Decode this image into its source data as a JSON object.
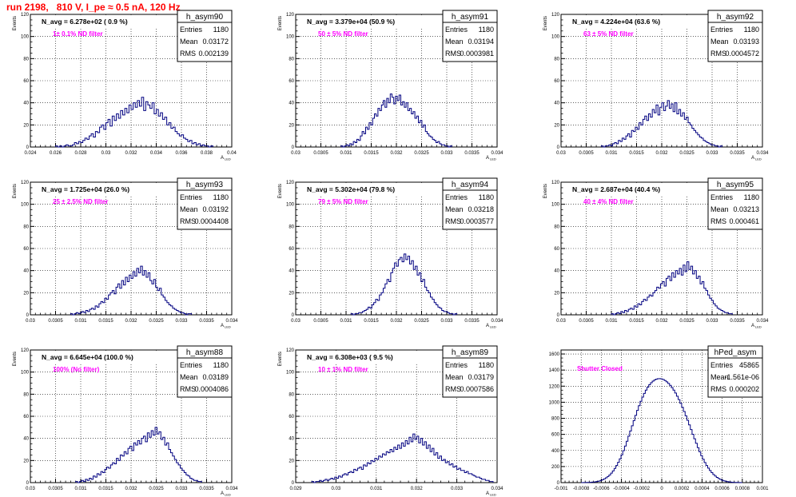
{
  "header": {
    "title": "run 2198,   810 V, I_pe ≈ 0.5 nA, 120 Hz"
  },
  "colors": {
    "title": "#ff0000",
    "label": "#ff00ff",
    "histogram": "#000080",
    "grid": "#000000"
  },
  "chart_data": [
    {
      "type": "histogram",
      "name": "h_asym90",
      "navg": "N_avg = 6.278e+02 ( 0.9 %)",
      "filter": "1± 0.1% ND filter",
      "stats": {
        "entries": "1180",
        "mean": "0.03172",
        "rms": "0.002139"
      },
      "ylabel": "Events",
      "xlabel": "A_LED",
      "xlim": [
        0.024,
        0.04
      ],
      "ylim": [
        0,
        120
      ],
      "xticks": [
        "0.024",
        "0.026",
        "0.028",
        "0.03",
        "0.032",
        "0.034",
        "0.036",
        "0.038",
        "0.04"
      ],
      "yticks": [
        "0",
        "20",
        "40",
        "60",
        "80",
        "100",
        "120"
      ],
      "bin_edges": [
        0.026,
        0.0385
      ],
      "counts": [
        1,
        0,
        1,
        0,
        1,
        2,
        1,
        1,
        2,
        4,
        3,
        5,
        4,
        6,
        8,
        7,
        10,
        12,
        9,
        14,
        13,
        18,
        20,
        16,
        22,
        25,
        19,
        28,
        24,
        30,
        26,
        33,
        29,
        35,
        31,
        38,
        34,
        40,
        36,
        42,
        37,
        45,
        33,
        41,
        38,
        35,
        40,
        30,
        34,
        28,
        31,
        25,
        27,
        20,
        22,
        17,
        18,
        14,
        12,
        10,
        11,
        8,
        7,
        5,
        6,
        3,
        4,
        2,
        3,
        1,
        2,
        1,
        1,
        0,
        1
      ]
    },
    {
      "type": "histogram",
      "name": "h_asym91",
      "navg": "N_avg = 3.379e+04 (50.9 %)",
      "filter": "50 ± 5% ND filter",
      "stats": {
        "entries": "1180",
        "mean": "0.03194",
        "rms": "0.0003981"
      },
      "ylabel": "Events",
      "xlabel": "A_LED",
      "xlim": [
        0.03,
        0.034
      ],
      "ylim": [
        0,
        120
      ],
      "xticks": [
        "0.03",
        "0.0305",
        "0.031",
        "0.0315",
        "0.032",
        "0.0325",
        "0.033",
        "0.0335",
        "0.034"
      ],
      "yticks": [
        "0",
        "20",
        "40",
        "60",
        "80",
        "100",
        "120"
      ],
      "bin_edges": [
        0.0309,
        0.0331
      ],
      "counts": [
        1,
        0,
        1,
        2,
        1,
        3,
        2,
        5,
        4,
        7,
        6,
        10,
        14,
        12,
        18,
        16,
        22,
        20,
        26,
        30,
        28,
        35,
        33,
        38,
        42,
        36,
        44,
        40,
        48,
        45,
        39,
        46,
        42,
        47,
        38,
        41,
        36,
        40,
        33,
        35,
        30,
        32,
        26,
        28,
        22,
        24,
        18,
        20,
        14,
        12,
        10,
        9,
        7,
        6,
        4,
        5,
        3,
        2,
        2,
        1,
        1,
        0,
        1
      ]
    },
    {
      "type": "histogram",
      "name": "h_asym92",
      "navg": "N_avg = 4.224e+04 (63.6 %)",
      "filter": "63 ± 5% ND filter",
      "stats": {
        "entries": "1180",
        "mean": "0.03193",
        "rms": "0.0004572"
      },
      "ylabel": "Events",
      "xlabel": "A_LED",
      "xlim": [
        0.03,
        0.034
      ],
      "ylim": [
        0,
        120
      ],
      "xticks": [
        "0.03",
        "0.0305",
        "0.031",
        "0.0315",
        "0.032",
        "0.0325",
        "0.033",
        "0.0335",
        "0.034"
      ],
      "yticks": [
        "0",
        "20",
        "40",
        "60",
        "80",
        "100",
        "120"
      ],
      "bin_edges": [
        0.0308,
        0.0332
      ],
      "counts": [
        1,
        0,
        1,
        1,
        2,
        1,
        3,
        4,
        3,
        6,
        5,
        8,
        7,
        10,
        12,
        9,
        15,
        14,
        18,
        16,
        22,
        20,
        25,
        28,
        24,
        30,
        27,
        34,
        31,
        38,
        29,
        36,
        40,
        33,
        37,
        42,
        35,
        39,
        32,
        40,
        30,
        34,
        28,
        31,
        25,
        27,
        22,
        20,
        17,
        15,
        13,
        11,
        9,
        8,
        6,
        5,
        4,
        3,
        2,
        2,
        1,
        1,
        0,
        1
      ]
    },
    {
      "type": "histogram",
      "name": "h_asym93",
      "navg": "N_avg = 1.725e+04 (26.0 %)",
      "filter": "25 ± 2.5% ND filter",
      "stats": {
        "entries": "1180",
        "mean": "0.03192",
        "rms": "0.0004408"
      },
      "ylabel": "Events",
      "xlabel": "A_LED",
      "xlim": [
        0.03,
        0.034
      ],
      "ylim": [
        0,
        120
      ],
      "xticks": [
        "0.03",
        "0.0305",
        "0.031",
        "0.0315",
        "0.032",
        "0.0325",
        "0.033",
        "0.0335",
        "0.034"
      ],
      "yticks": [
        "0",
        "20",
        "40",
        "60",
        "80",
        "100",
        "120"
      ],
      "bin_edges": [
        0.0308,
        0.0332
      ],
      "counts": [
        1,
        0,
        1,
        2,
        1,
        2,
        3,
        2,
        4,
        3,
        5,
        6,
        5,
        8,
        7,
        10,
        12,
        11,
        15,
        14,
        18,
        20,
        22,
        19,
        25,
        28,
        24,
        31,
        27,
        34,
        30,
        36,
        33,
        39,
        35,
        42,
        38,
        44,
        36,
        40,
        34,
        38,
        31,
        28,
        32,
        25,
        22,
        24,
        18,
        16,
        13,
        11,
        9,
        8,
        6,
        5,
        4,
        3,
        2,
        2,
        1,
        0,
        1,
        1
      ]
    },
    {
      "type": "histogram",
      "name": "h_asym94",
      "navg": "N_avg = 5.302e+04 (79.8 %)",
      "filter": "79 ± 5% ND filter",
      "stats": {
        "entries": "1180",
        "mean": "0.03218",
        "rms": "0.0003577"
      },
      "ylabel": "Events",
      "xlabel": "A_LED",
      "xlim": [
        0.03,
        0.034
      ],
      "ylim": [
        0,
        120
      ],
      "xticks": [
        "0.03",
        "0.0305",
        "0.031",
        "0.0315",
        "0.032",
        "0.0325",
        "0.033",
        "0.0335",
        "0.034"
      ],
      "yticks": [
        "0",
        "20",
        "40",
        "60",
        "80",
        "100",
        "120"
      ],
      "bin_edges": [
        0.0311,
        0.0332
      ],
      "counts": [
        1,
        0,
        1,
        1,
        2,
        2,
        3,
        4,
        5,
        7,
        6,
        9,
        11,
        14,
        13,
        18,
        20,
        24,
        28,
        32,
        30,
        38,
        42,
        47,
        44,
        50,
        52,
        48,
        55,
        50,
        53,
        46,
        49,
        41,
        44,
        36,
        38,
        30,
        32,
        25,
        22,
        20,
        16,
        14,
        11,
        9,
        7,
        6,
        4,
        3,
        3,
        2,
        1,
        1,
        0,
        1
      ]
    },
    {
      "type": "histogram",
      "name": "h_asym95",
      "navg": "N_avg = 2.687e+04 (40.4 %)",
      "filter": "40 ± 4% ND filter",
      "stats": {
        "entries": "1180",
        "mean": "0.03213",
        "rms": "0.000461"
      },
      "ylabel": "Events",
      "xlabel": "A_LED",
      "xlim": [
        0.03,
        0.034
      ],
      "ylim": [
        0,
        120
      ],
      "xticks": [
        "0.03",
        "0.0305",
        "0.031",
        "0.0315",
        "0.032",
        "0.0325",
        "0.033",
        "0.0335",
        "0.034"
      ],
      "yticks": [
        "0",
        "20",
        "40",
        "60",
        "80",
        "100",
        "120"
      ],
      "bin_edges": [
        0.031,
        0.0334
      ],
      "counts": [
        1,
        0,
        1,
        2,
        1,
        3,
        2,
        4,
        3,
        5,
        6,
        5,
        8,
        7,
        10,
        9,
        12,
        14,
        13,
        16,
        18,
        17,
        20,
        22,
        25,
        24,
        28,
        30,
        26,
        33,
        35,
        31,
        38,
        34,
        40,
        37,
        42,
        36,
        45,
        39,
        48,
        41,
        44,
        37,
        40,
        33,
        35,
        28,
        30,
        24,
        22,
        18,
        15,
        13,
        10,
        8,
        6,
        5,
        4,
        3,
        2,
        2,
        1,
        1
      ]
    },
    {
      "type": "histogram",
      "name": "h_asym88",
      "navg": "N_avg = 6.645e+04 (100.0 %)",
      "filter": "100% (No filter)",
      "stats": {
        "entries": "1180",
        "mean": "0.03189",
        "rms": "0.0004086"
      },
      "ylabel": "Events",
      "xlabel": "A_LED",
      "xlim": [
        0.03,
        0.034
      ],
      "ylim": [
        0,
        120
      ],
      "xticks": [
        "0.03",
        "0.0305",
        "0.031",
        "0.0315",
        "0.032",
        "0.0325",
        "0.033",
        "0.0335",
        "0.034"
      ],
      "yticks": [
        "0",
        "20",
        "40",
        "60",
        "80",
        "100",
        "120"
      ],
      "bin_edges": [
        0.0309,
        0.0334
      ],
      "counts": [
        1,
        0,
        1,
        2,
        1,
        3,
        2,
        4,
        3,
        6,
        5,
        8,
        7,
        10,
        9,
        12,
        14,
        13,
        16,
        18,
        17,
        22,
        20,
        25,
        24,
        28,
        26,
        31,
        33,
        29,
        36,
        34,
        38,
        35,
        40,
        42,
        37,
        45,
        41,
        47,
        43,
        50,
        44,
        46,
        39,
        41,
        34,
        36,
        30,
        27,
        24,
        21,
        18,
        16,
        13,
        11,
        9,
        7,
        6,
        4,
        3,
        2,
        2,
        1,
        1
      ]
    },
    {
      "type": "histogram",
      "name": "h_asym89",
      "navg": "N_avg = 6.308e+03 ( 9.5 %)",
      "filter": "10 ± 1% ND filter",
      "stats": {
        "entries": "1180",
        "mean": "0.03179",
        "rms": "0.0007586"
      },
      "ylabel": "Events",
      "xlabel": "A_LED",
      "xlim": [
        0.029,
        0.034
      ],
      "ylim": [
        0,
        120
      ],
      "xticks": [
        "0.029",
        "0.03",
        "0.031",
        "0.032",
        "0.033",
        "0.034"
      ],
      "yticks": [
        "0",
        "20",
        "40",
        "60",
        "80",
        "100",
        "120"
      ],
      "bin_edges": [
        0.0294,
        0.0339
      ],
      "counts": [
        1,
        0,
        1,
        1,
        2,
        1,
        2,
        3,
        2,
        3,
        4,
        3,
        5,
        4,
        6,
        5,
        7,
        8,
        7,
        9,
        10,
        9,
        12,
        11,
        13,
        14,
        12,
        16,
        15,
        18,
        17,
        20,
        19,
        22,
        21,
        24,
        23,
        26,
        25,
        28,
        27,
        30,
        28,
        32,
        30,
        34,
        31,
        36,
        33,
        38,
        35,
        41,
        37,
        44,
        39,
        42,
        36,
        40,
        34,
        37,
        31,
        34,
        28,
        31,
        25,
        27,
        22,
        24,
        20,
        21,
        18,
        19,
        16,
        17,
        14,
        15,
        12,
        13,
        11,
        11,
        9,
        10,
        8,
        8,
        7,
        6,
        5,
        5,
        4,
        3,
        3,
        2,
        2,
        1,
        1
      ]
    },
    {
      "type": "histogram",
      "name": "hPed_asym",
      "navg": "",
      "filter": "Shutter Closed",
      "stats": {
        "entries": "45865",
        "mean": "-1.561e-06",
        "rms": "0.000202"
      },
      "ylabel": "",
      "xlabel": "",
      "xlim": [
        -0.001,
        0.001
      ],
      "ylim": [
        0,
        1650
      ],
      "xticks": [
        "-0.001",
        "-0.0008",
        "-0.0006",
        "-0.0004",
        "-0.0002",
        "0",
        "0.0002",
        "0.0004",
        "0.0006",
        "0.0008",
        "0.001"
      ],
      "yticks": [
        "0",
        "200",
        "400",
        "600",
        "800",
        "1000",
        "1200",
        "1400",
        "1600"
      ],
      "bin_edges": [
        -0.0008,
        0.0008
      ],
      "counts": [
        0,
        1,
        1,
        2,
        3,
        4,
        6,
        8,
        11,
        15,
        20,
        27,
        36,
        47,
        60,
        76,
        95,
        118,
        145,
        176,
        212,
        252,
        296,
        345,
        398,
        455,
        515,
        578,
        642,
        707,
        772,
        836,
        898,
        957,
        1012,
        1063,
        1109,
        1150,
        1186,
        1217,
        1242,
        1262,
        1277,
        1287,
        1292,
        1293,
        1290,
        1282,
        1270,
        1254,
        1234,
        1210,
        1182,
        1150,
        1114,
        1075,
        1032,
        986,
        937,
        885,
        831,
        775,
        718,
        660,
        602,
        545,
        489,
        435,
        384,
        336,
        291,
        250,
        213,
        180,
        150,
        124,
        101,
        82,
        65,
        51,
        40,
        30,
        23,
        17,
        12,
        9,
        6,
        4,
        3,
        2,
        1,
        1,
        0
      ]
    }
  ]
}
